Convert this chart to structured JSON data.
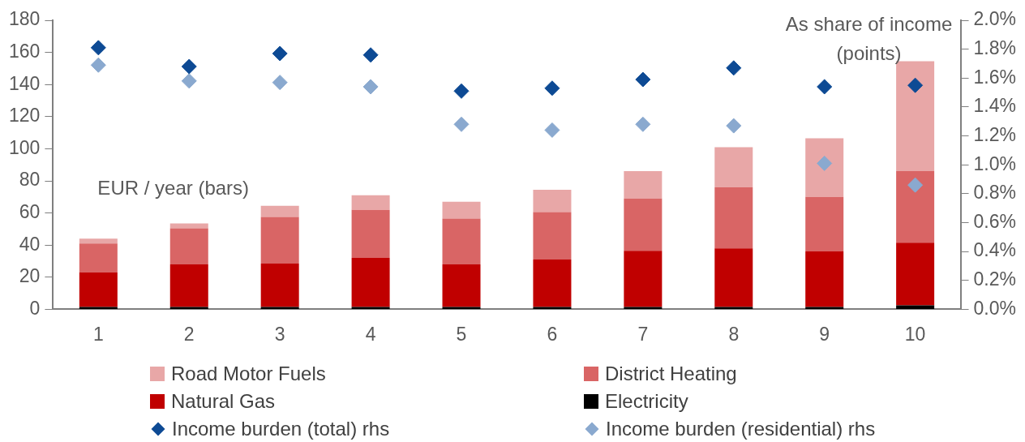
{
  "chart_data": {
    "type": "bar",
    "stacked": true,
    "ylabel": "EUR / year (bars)",
    "y2label": "As share of income (points)",
    "categories": [
      "1",
      "2",
      "3",
      "4",
      "5",
      "6",
      "7",
      "8",
      "9",
      "10"
    ],
    "series": [
      {
        "name": "Electricity",
        "color": "#000000",
        "values": [
          1.5,
          1.5,
          1.5,
          1.5,
          1.5,
          1.5,
          1.5,
          1.5,
          1.5,
          2.5
        ]
      },
      {
        "name": "Natural Gas",
        "color": "#c00000",
        "values": [
          21.5,
          26.5,
          27,
          30.5,
          26.5,
          29.5,
          35,
          36.5,
          34.5,
          39
        ]
      },
      {
        "name": "District Heating",
        "color": "#d96565",
        "values": [
          18,
          22.5,
          29,
          30,
          28.5,
          29.5,
          32.5,
          38,
          34,
          44.5
        ]
      },
      {
        "name": "Road Motor Fuels",
        "color": "#e8a7a7",
        "values": [
          3,
          3,
          7,
          9,
          10.5,
          14,
          17,
          25,
          36.5,
          68.5
        ]
      },
      {
        "name": "Income burden (total) rhs",
        "type": "scatter",
        "axis": "y2",
        "color": "#0d4a94",
        "x": [
          "1",
          "2",
          "3",
          "4",
          "5",
          "6",
          "7",
          "8",
          "9",
          "10"
        ],
        "values": [
          1.81,
          1.68,
          1.77,
          1.76,
          1.51,
          1.53,
          1.59,
          1.67,
          1.54,
          1.55
        ]
      },
      {
        "name": "Income burden (residential) rhs",
        "type": "scatter",
        "axis": "y2",
        "color": "#8aa9cf",
        "x": [
          "1",
          "2",
          "3",
          "4",
          "5",
          "6",
          "7",
          "8",
          "9",
          "10"
        ],
        "values": [
          1.69,
          1.58,
          1.57,
          1.54,
          1.28,
          1.24,
          1.28,
          1.27,
          1.01,
          0.86
        ]
      }
    ],
    "marker": "diamond",
    "legend": "bottom",
    "grid": false,
    "ylim": [
      0,
      180
    ],
    "yticks": [
      0,
      20,
      40,
      60,
      80,
      100,
      120,
      140,
      160,
      180
    ],
    "y2lim": [
      0,
      2
    ],
    "y2ticks": [
      {
        "value": 0,
        "label": "0.0%"
      },
      {
        "value": 0.2,
        "label": "0.2%"
      },
      {
        "value": 0.4,
        "label": "0.4%"
      },
      {
        "value": 0.6,
        "label": "0.6%"
      },
      {
        "value": 0.8,
        "label": "0.8%"
      },
      {
        "value": 1,
        "label": "1.0%"
      },
      {
        "value": 1.2,
        "label": "1.2%"
      },
      {
        "value": 1.4,
        "label": "1.4%"
      },
      {
        "value": 1.6,
        "label": "1.6%"
      },
      {
        "value": 1.8,
        "label": "1.8%"
      },
      {
        "value": 2,
        "label": "2.0%"
      }
    ]
  }
}
